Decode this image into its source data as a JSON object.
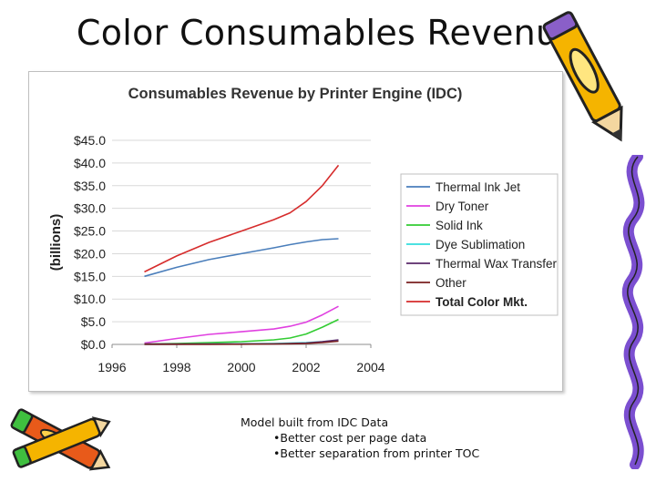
{
  "slide": {
    "title": "Color Consumables Revenue",
    "notes": [
      "Model built from IDC Data",
      "•Better cost per page data",
      "•Better separation from printer TOC"
    ]
  },
  "chart_data": {
    "type": "line",
    "title": "Consumables Revenue by Printer Engine (IDC)",
    "xlabel": "",
    "ylabel": "(billions)",
    "xlim": [
      1996,
      2004
    ],
    "ylim": [
      0,
      45
    ],
    "x_ticks": [
      "1996",
      "1998",
      "2000",
      "2002",
      "2004"
    ],
    "y_ticks": [
      "$0.0",
      "$5.0",
      "$10.0",
      "$15.0",
      "$20.0",
      "$25.0",
      "$30.0",
      "$35.0",
      "$40.0",
      "$45.0"
    ],
    "grid": "horizontal",
    "legend": "right",
    "x": [
      1997,
      1998,
      1999,
      2000,
      2001,
      2001.5,
      2002,
      2002.5,
      2003
    ],
    "series": [
      {
        "name": "Thermal Ink Jet",
        "color": "#4a7ebb",
        "values": [
          15.0,
          17.0,
          18.7,
          20.0,
          21.3,
          22.0,
          22.6,
          23.1,
          23.3
        ]
      },
      {
        "name": "Dry Toner",
        "color": "#e040e0",
        "values": [
          0.3,
          1.3,
          2.2,
          2.8,
          3.4,
          4.0,
          4.9,
          6.5,
          8.4
        ]
      },
      {
        "name": "Solid Ink",
        "color": "#33cc33",
        "values": [
          0.1,
          0.2,
          0.4,
          0.6,
          1.0,
          1.4,
          2.3,
          3.8,
          5.5
        ]
      },
      {
        "name": "Dye Sublimation",
        "color": "#33dddd",
        "values": [
          0.0,
          0.05,
          0.1,
          0.15,
          0.2,
          0.3,
          0.4,
          0.6,
          0.9
        ]
      },
      {
        "name": "Thermal Wax Transfer",
        "color": "#5a2a6a",
        "values": [
          0.1,
          0.1,
          0.1,
          0.1,
          0.1,
          0.2,
          0.3,
          0.6,
          1.0
        ]
      },
      {
        "name": "Other",
        "color": "#7a2020",
        "values": [
          0.0,
          0.0,
          0.0,
          0.05,
          0.1,
          0.15,
          0.2,
          0.4,
          0.7
        ]
      },
      {
        "name": "Total Color Mkt.",
        "color": "#d62c2c",
        "values": [
          16.0,
          19.5,
          22.5,
          25.0,
          27.5,
          29.0,
          31.5,
          35.0,
          39.5
        ],
        "bold": true
      }
    ]
  }
}
